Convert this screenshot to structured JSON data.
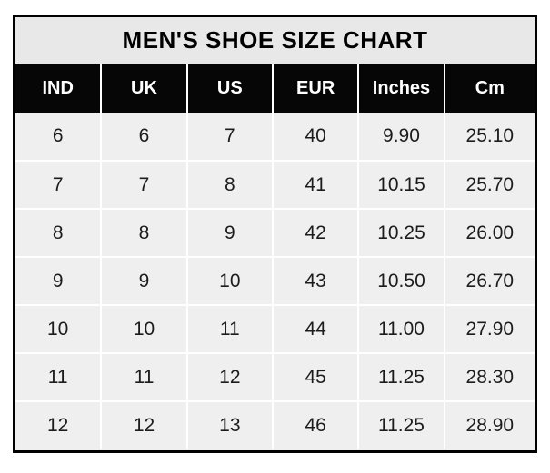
{
  "chart_data": {
    "type": "table",
    "title": "MEN'S SHOE SIZE CHART",
    "columns": [
      "IND",
      "UK",
      "US",
      "EUR",
      "Inches",
      "Cm"
    ],
    "rows": [
      [
        "6",
        "6",
        "7",
        "40",
        "9.90",
        "25.10"
      ],
      [
        "7",
        "7",
        "8",
        "41",
        "10.15",
        "25.70"
      ],
      [
        "8",
        "8",
        "9",
        "42",
        "10.25",
        "26.00"
      ],
      [
        "9",
        "9",
        "10",
        "43",
        "10.50",
        "26.70"
      ],
      [
        "10",
        "10",
        "11",
        "44",
        "11.00",
        "27.90"
      ],
      [
        "11",
        "11",
        "12",
        "45",
        "11.25",
        "28.30"
      ],
      [
        "12",
        "12",
        "13",
        "46",
        "11.25",
        "28.90"
      ]
    ]
  },
  "colors": {
    "header_bg": "#060606",
    "header_text": "#ffffff",
    "title_bg": "#e9e8e8",
    "cell_bg": "#f0efef",
    "gridline": "#ffffff",
    "outer_border": "#000000",
    "text": "#1c1c1c",
    "page_bg": "#ffffff"
  }
}
